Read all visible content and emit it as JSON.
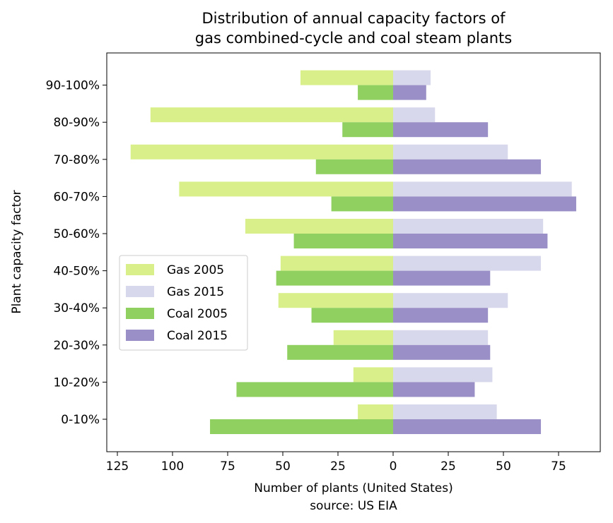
{
  "chart_data": {
    "type": "bar",
    "orientation": "horizontal-diverging",
    "title_lines": [
      "Distribution of annual capacity factors of",
      "gas combined-cycle and coal steam plants"
    ],
    "xlabel": "Number of plants (United States)",
    "xlabel_sub": "source: US EIA",
    "ylabel": "Plant capacity factor",
    "categories": [
      "0-10%",
      "10-20%",
      "20-30%",
      "30-40%",
      "40-50%",
      "50-60%",
      "60-70%",
      "70-80%",
      "80-90%",
      "90-100%"
    ],
    "xlim": [
      -130,
      95
    ],
    "xticks": [
      -125,
      -100,
      -75,
      -50,
      -25,
      0,
      25,
      50,
      75
    ],
    "xtick_labels": [
      "125",
      "100",
      "75",
      "50",
      "25",
      "0",
      "25",
      "50",
      "75"
    ],
    "legend_position": "center-left",
    "grid": false,
    "series": [
      {
        "name": "Gas 2005",
        "side": "left",
        "slot": "upper",
        "color": "#d9f08a",
        "values": [
          16,
          18,
          27,
          52,
          51,
          67,
          97,
          119,
          110,
          42
        ]
      },
      {
        "name": "Gas 2015",
        "side": "right",
        "slot": "upper",
        "color": "#d8d8ec",
        "values": [
          47,
          45,
          43,
          52,
          67,
          68,
          81,
          52,
          19,
          17
        ]
      },
      {
        "name": "Coal 2005",
        "side": "left",
        "slot": "lower",
        "color": "#90d060",
        "values": [
          83,
          71,
          48,
          37,
          53,
          45,
          28,
          35,
          23,
          16
        ]
      },
      {
        "name": "Coal 2015",
        "side": "right",
        "slot": "lower",
        "color": "#9a8fc6",
        "values": [
          67,
          37,
          44,
          43,
          44,
          70,
          83,
          67,
          43,
          15
        ]
      }
    ]
  }
}
